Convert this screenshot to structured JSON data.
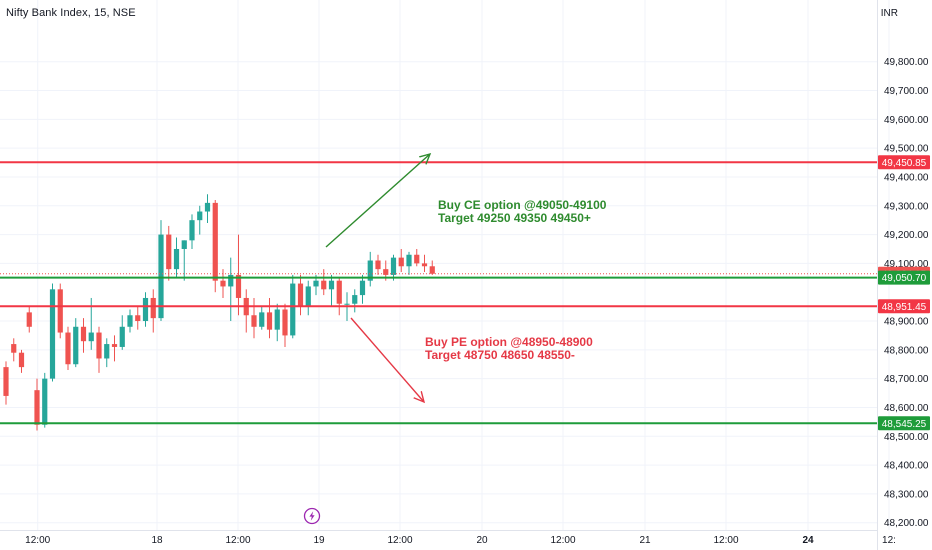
{
  "header": {
    "title": "Nifty Bank Index, 15, NSE",
    "currency": "INR"
  },
  "colors": {
    "up": "#26a69a",
    "down": "#ef5350",
    "resistance": "#f23645",
    "support": "#1e9c3a",
    "buy_note": "#2e8b2e",
    "sell_note": "#e53946",
    "grid": "#f0f3fa"
  },
  "annotations": {
    "buy": {
      "line1": "Buy CE option @49050-49100",
      "line2": "Target 49250 49350 49450+"
    },
    "sell": {
      "line1": "Buy PE option @48950-48900",
      "line2": "Target 48750 48650 48550-"
    }
  },
  "chart_data": {
    "type": "candlestick",
    "symbol": "Nifty Bank Index",
    "interval": "15",
    "exchange": "NSE",
    "ylim": [
      48140,
      49910
    ],
    "y_ticks": [
      {
        "value": 48200,
        "label": "48,200.00"
      },
      {
        "value": 48300,
        "label": "48,300.00"
      },
      {
        "value": 48400,
        "label": "48,400.00"
      },
      {
        "value": 48500,
        "label": "48,500.00"
      },
      {
        "value": 48600,
        "label": "48,600.00"
      },
      {
        "value": 48700,
        "label": "48,700.00"
      },
      {
        "value": 48800,
        "label": "48,800.00"
      },
      {
        "value": 48900,
        "label": "48,900.00"
      },
      {
        "value": 49100,
        "label": "49,100.00"
      },
      {
        "value": 49200,
        "label": "49,200.00"
      },
      {
        "value": 49300,
        "label": "49,300.00"
      },
      {
        "value": 49400,
        "label": "49,400.00"
      },
      {
        "value": 49500,
        "label": "49,500.00"
      },
      {
        "value": 49600,
        "label": "49,600.00"
      },
      {
        "value": 49700,
        "label": "49,700.00"
      },
      {
        "value": 49800,
        "label": "49,800.00"
      }
    ],
    "x_ticks": [
      {
        "label": "12:00",
        "day": 0,
        "slot": 17,
        "bold": false
      },
      {
        "label": "18",
        "day": 1,
        "slot": 0,
        "bold": false
      },
      {
        "label": "12:00",
        "day": 1,
        "slot": 10,
        "bold": false
      },
      {
        "label": "19",
        "day": 2,
        "slot": 0,
        "bold": false
      },
      {
        "label": "12:00",
        "day": 2,
        "slot": 10,
        "bold": false
      },
      {
        "label": "20",
        "day": 3,
        "slot": 0,
        "bold": false
      },
      {
        "label": "12:00",
        "day": 3,
        "slot": 10,
        "bold": false
      },
      {
        "label": "21",
        "day": 4,
        "slot": 0,
        "bold": false
      },
      {
        "label": "12:00",
        "day": 4,
        "slot": 10,
        "bold": false
      },
      {
        "label": "24",
        "day": 5,
        "slot": 0,
        "bold": true
      },
      {
        "label": "12:",
        "day": 5,
        "slot": 10,
        "bold": false
      }
    ],
    "levels": [
      {
        "name": "resistance-level",
        "value": 49450.85,
        "label": "49,450.85",
        "role": "resistance"
      },
      {
        "name": "last-price-level",
        "value": 49064.15,
        "label": "49,064.15",
        "role": "last"
      },
      {
        "name": "support-level-upper",
        "value": 49050.7,
        "label": "49,050.70",
        "role": "support"
      },
      {
        "name": "resistance-level-lower",
        "value": 48951.45,
        "label": "48,951.45",
        "role": "resistance"
      },
      {
        "name": "support-level-lower",
        "value": 48545.25,
        "label": "48,545.25",
        "role": "support"
      }
    ],
    "candles": [
      {
        "o": 48740,
        "h": 48760,
        "l": 48610,
        "c": 48640
      },
      {
        "o": 48820,
        "h": 48840,
        "l": 48760,
        "c": 48790
      },
      {
        "o": 48790,
        "h": 48800,
        "l": 48720,
        "c": 48740
      },
      {
        "o": 48930,
        "h": 48950,
        "l": 48860,
        "c": 48880
      },
      {
        "o": 48660,
        "h": 48700,
        "l": 48520,
        "c": 48540
      },
      {
        "o": 48540,
        "h": 48720,
        "l": 48530,
        "c": 48700
      },
      {
        "o": 48700,
        "h": 49030,
        "l": 48690,
        "c": 49010
      },
      {
        "o": 49010,
        "h": 49030,
        "l": 48840,
        "c": 48860
      },
      {
        "o": 48860,
        "h": 48880,
        "l": 48730,
        "c": 48750
      },
      {
        "o": 48750,
        "h": 48910,
        "l": 48740,
        "c": 48880
      },
      {
        "o": 48880,
        "h": 48910,
        "l": 48790,
        "c": 48830
      },
      {
        "o": 48830,
        "h": 48980,
        "l": 48800,
        "c": 48860
      },
      {
        "o": 48860,
        "h": 48880,
        "l": 48720,
        "c": 48770
      },
      {
        "o": 48770,
        "h": 48840,
        "l": 48740,
        "c": 48820
      },
      {
        "o": 48820,
        "h": 48850,
        "l": 48760,
        "c": 48810
      },
      {
        "o": 48810,
        "h": 48920,
        "l": 48800,
        "c": 48880
      },
      {
        "o": 48880,
        "h": 48940,
        "l": 48860,
        "c": 48920
      },
      {
        "o": 48920,
        "h": 48950,
        "l": 48870,
        "c": 48900
      },
      {
        "o": 48900,
        "h": 49000,
        "l": 48880,
        "c": 48980
      },
      {
        "o": 48980,
        "h": 49010,
        "l": 48860,
        "c": 48910
      },
      {
        "o": 48910,
        "h": 49250,
        "l": 48900,
        "c": 49200
      },
      {
        "o": 49200,
        "h": 49230,
        "l": 49040,
        "c": 49080
      },
      {
        "o": 49080,
        "h": 49190,
        "l": 49050,
        "c": 49150
      },
      {
        "o": 49150,
        "h": 49180,
        "l": 49040,
        "c": 49180
      },
      {
        "o": 49180,
        "h": 49270,
        "l": 49150,
        "c": 49250
      },
      {
        "o": 49250,
        "h": 49300,
        "l": 49200,
        "c": 49280
      },
      {
        "o": 49280,
        "h": 49340,
        "l": 49240,
        "c": 49310
      },
      {
        "o": 49310,
        "h": 49320,
        "l": 49000,
        "c": 49040
      },
      {
        "o": 49040,
        "h": 49080,
        "l": 48980,
        "c": 49020
      },
      {
        "o": 49020,
        "h": 49120,
        "l": 48900,
        "c": 49060
      },
      {
        "o": 49060,
        "h": 49200,
        "l": 48920,
        "c": 48980
      },
      {
        "o": 48980,
        "h": 49010,
        "l": 48860,
        "c": 48920
      },
      {
        "o": 48920,
        "h": 48980,
        "l": 48840,
        "c": 48880
      },
      {
        "o": 48880,
        "h": 48950,
        "l": 48870,
        "c": 48930
      },
      {
        "o": 48930,
        "h": 48980,
        "l": 48840,
        "c": 48870
      },
      {
        "o": 48870,
        "h": 48960,
        "l": 48830,
        "c": 48940
      },
      {
        "o": 48940,
        "h": 48960,
        "l": 48810,
        "c": 48850
      },
      {
        "o": 48850,
        "h": 49060,
        "l": 48840,
        "c": 49030
      },
      {
        "o": 49030,
        "h": 49060,
        "l": 48920,
        "c": 48950
      },
      {
        "o": 48950,
        "h": 49040,
        "l": 48920,
        "c": 49020
      },
      {
        "o": 49020,
        "h": 49060,
        "l": 48990,
        "c": 49040
      },
      {
        "o": 49040,
        "h": 49080,
        "l": 48990,
        "c": 49010
      },
      {
        "o": 49010,
        "h": 49060,
        "l": 48950,
        "c": 49040
      },
      {
        "o": 49040,
        "h": 49050,
        "l": 48920,
        "c": 48960
      },
      {
        "o": 48960,
        "h": 49000,
        "l": 48900,
        "c": 48960
      },
      {
        "o": 48960,
        "h": 49010,
        "l": 48930,
        "c": 48990
      },
      {
        "o": 48990,
        "h": 49060,
        "l": 48960,
        "c": 49040
      },
      {
        "o": 49040,
        "h": 49140,
        "l": 49020,
        "c": 49110
      },
      {
        "o": 49110,
        "h": 49130,
        "l": 49060,
        "c": 49080
      },
      {
        "o": 49080,
        "h": 49110,
        "l": 49040,
        "c": 49060
      },
      {
        "o": 49060,
        "h": 49130,
        "l": 49040,
        "c": 49120
      },
      {
        "o": 49120,
        "h": 49150,
        "l": 49070,
        "c": 49090
      },
      {
        "o": 49090,
        "h": 49140,
        "l": 49060,
        "c": 49130
      },
      {
        "o": 49130,
        "h": 49150,
        "l": 49090,
        "c": 49100
      },
      {
        "o": 49100,
        "h": 49130,
        "l": 49070,
        "c": 49090
      },
      {
        "o": 49090,
        "h": 49110,
        "l": 49060,
        "c": 49064
      }
    ]
  }
}
